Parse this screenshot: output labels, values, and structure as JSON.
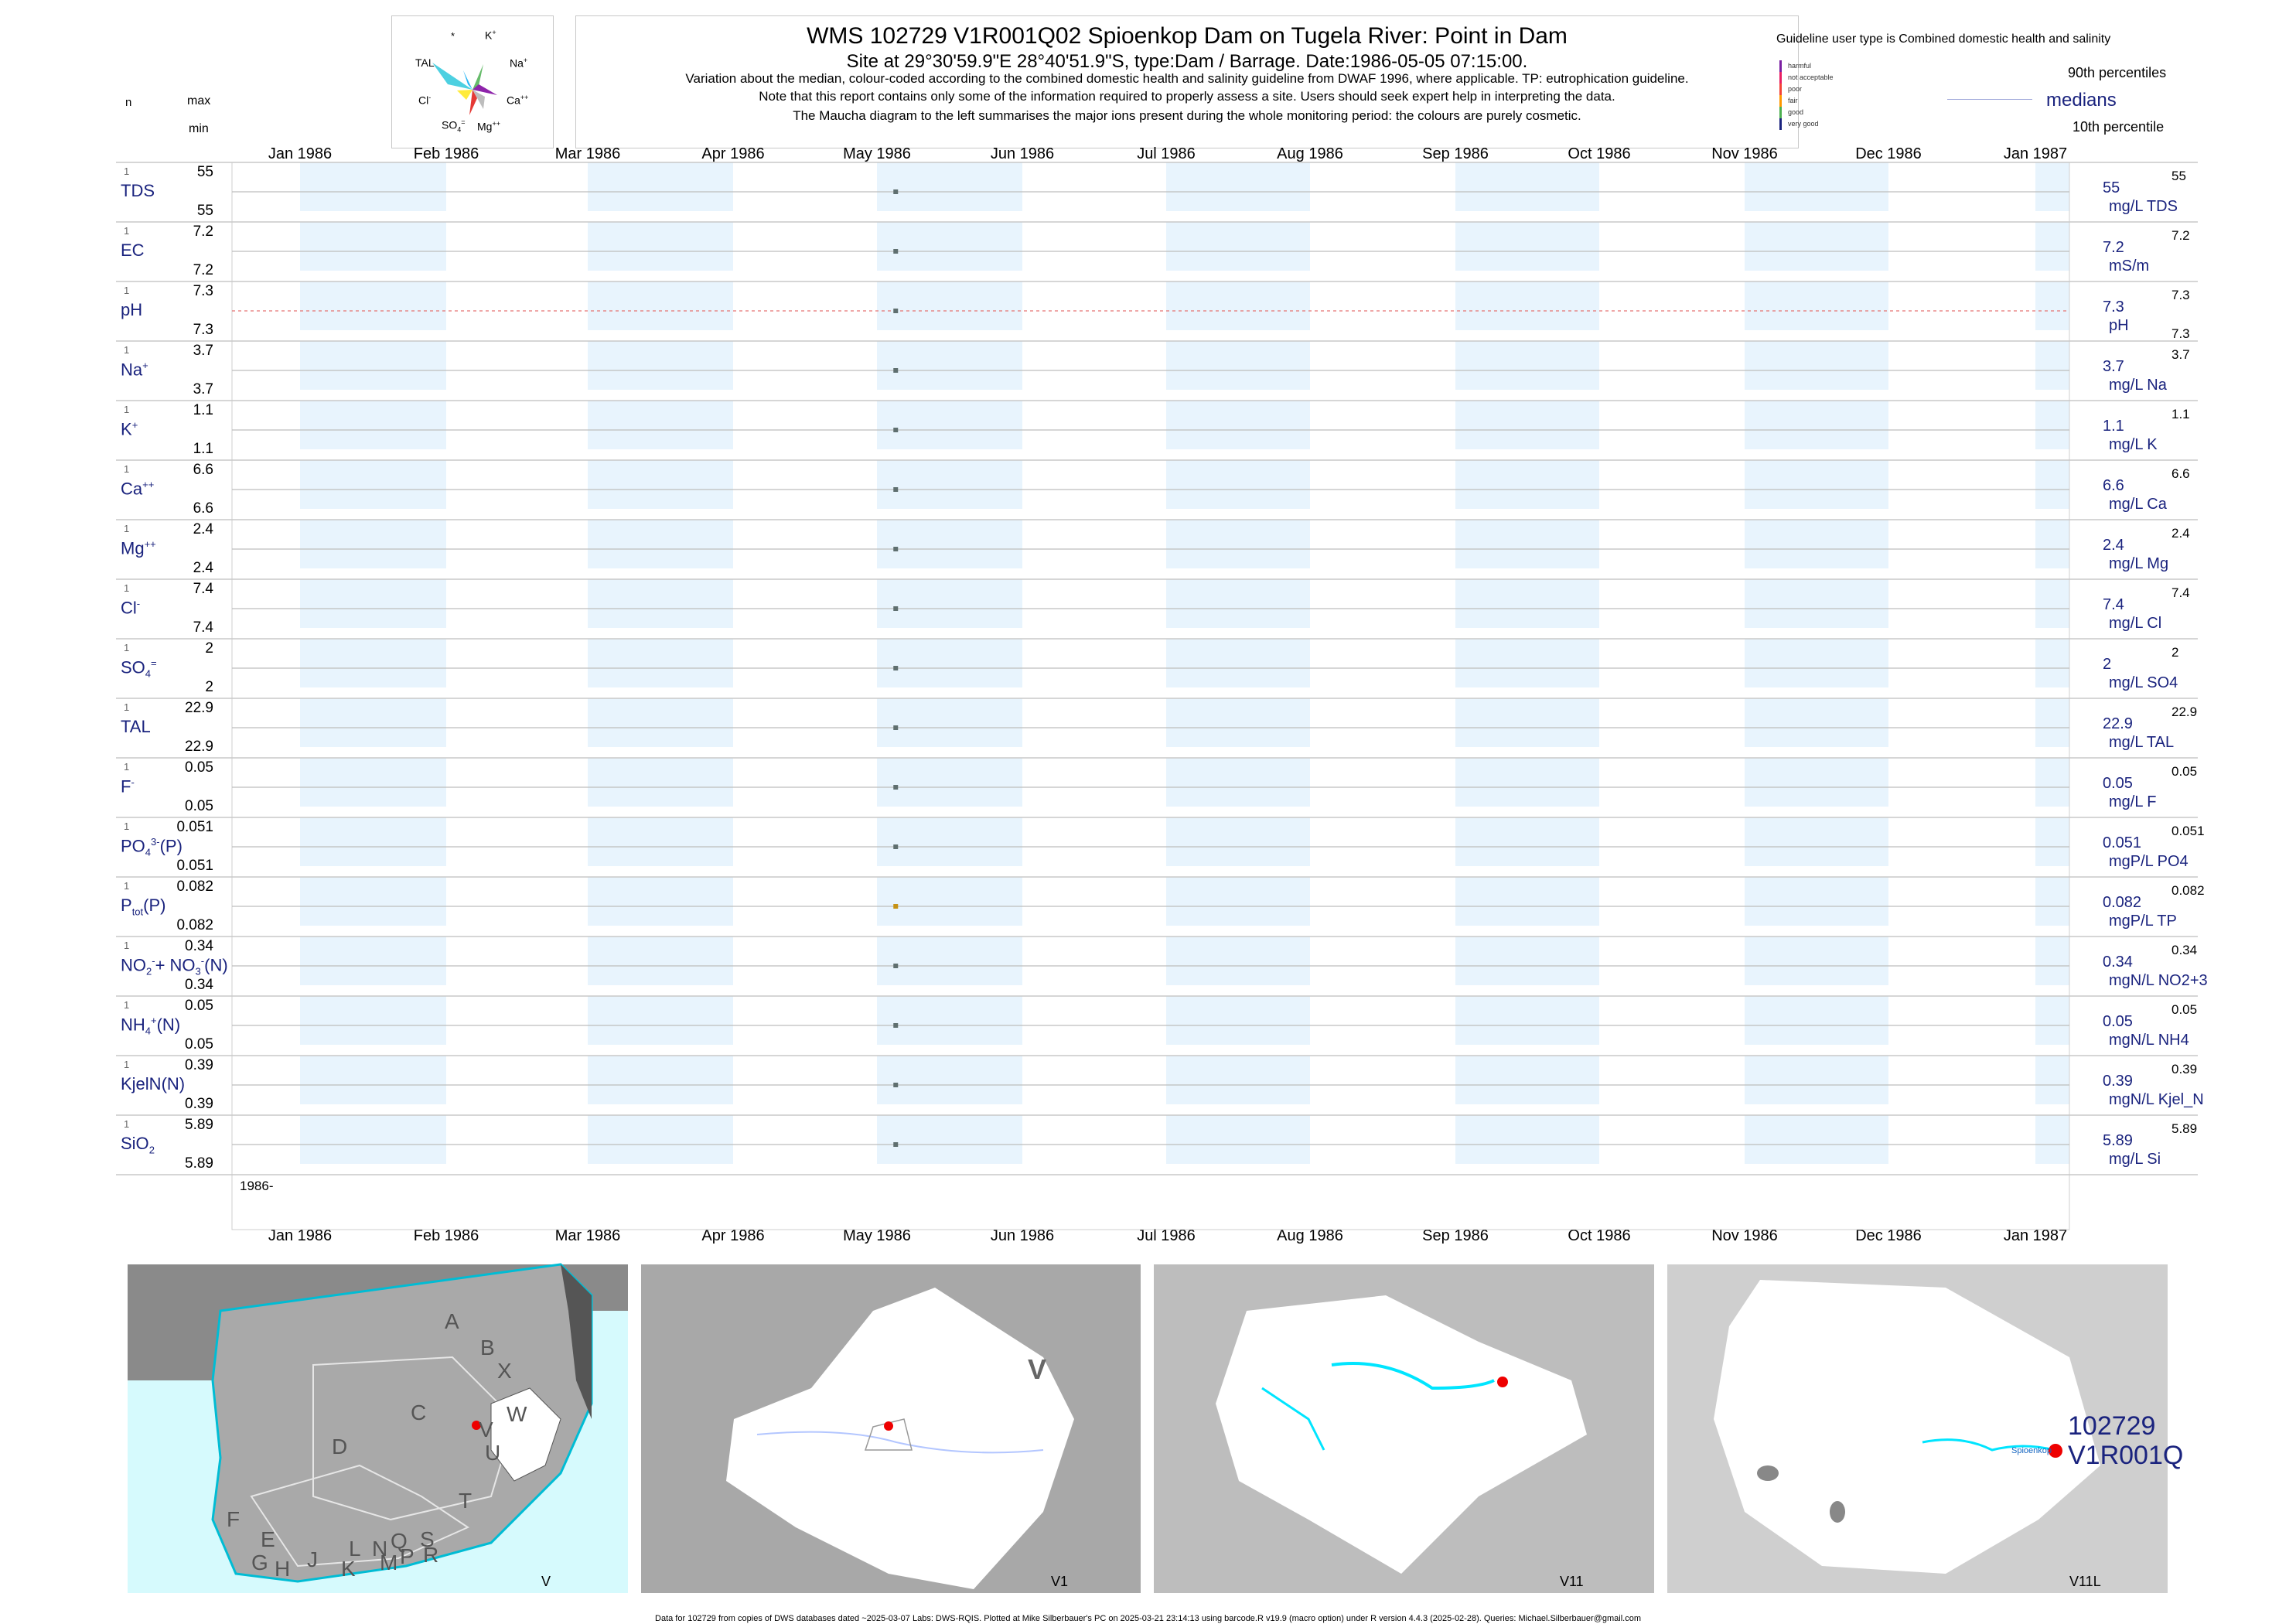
{
  "header": {
    "title": "WMS 102729 V1R001Q02 Spioenkop Dam on Tugela River: Point in Dam",
    "site_line": "Site at 29°30'59.9\"E 28°40'51.9\"S, type:Dam / Barrage. Date:1986-05-05 07:15:00.",
    "note1": "Variation about the median,  colour-coded according to the combined domestic health and salinity guideline from DWAF 1996, where applicable. TP: eutrophication guideline.",
    "note2": "Note that this report contains only some of the information required to properly assess a site. Users should seek expert help in interpreting the data.",
    "note3": "The Maucha diagram to the left summarises the major ions present during the whole monitoring period: the colours are purely cosmetic."
  },
  "left_header": {
    "n": "n",
    "max": "max",
    "min": "min"
  },
  "maucha": {
    "labels": {
      "star": "*",
      "k": "K+",
      "tal": "TAL",
      "na": "Na+",
      "cl": "Cl-",
      "ca": "Ca++",
      "so4": "SO4=",
      "mg": "Mg++"
    },
    "k_text": "K",
    "k_sup": "+",
    "na_text": "Na",
    "na_sup": "+",
    "cl_text": "Cl",
    "cl_sup": "-",
    "ca_text": "Ca",
    "ca_sup": "++",
    "so4_text": "SO",
    "so4_sub": "4",
    "so4_sup": "=",
    "mg_text": "Mg",
    "mg_sup": "++"
  },
  "guideline": {
    "title": "Guideline user type is Combined domestic health and salinity",
    "levels": [
      {
        "label": "harmful",
        "color": "#7b1fa2"
      },
      {
        "label": "not acceptable",
        "color": "#e91e63"
      },
      {
        "label": "poor",
        "color": "#f44336"
      },
      {
        "label": "fair",
        "color": "#ff9800"
      },
      {
        "label": "good",
        "color": "#4caf50"
      },
      {
        "label": "very good",
        "color": "#1a237e"
      }
    ],
    "p90": "90th percentiles",
    "medians": "medians",
    "p10": "10th percentile"
  },
  "axis": {
    "months": [
      "Jan 1986",
      "Feb 1986",
      "Mar 1986",
      "Apr 1986",
      "May 1986",
      "Jun 1986",
      "Jul 1986",
      "Aug 1986",
      "Sep 1986",
      "Oct 1986",
      "Nov 1986",
      "Dec 1986",
      "Jan 1987"
    ],
    "year_label": "1986-"
  },
  "rows": [
    {
      "name": "TDS",
      "n": "1",
      "max": "55",
      "min": "55",
      "median": "55",
      "unit": "mg/L TDS",
      "rmax": "55",
      "rmin": ""
    },
    {
      "name": "EC",
      "n": "1",
      "max": "7.2",
      "min": "7.2",
      "median": "7.2",
      "unit": "mS/m",
      "rmax": "7.2",
      "rmin": ""
    },
    {
      "name": "pH",
      "n": "1",
      "max": "7.3",
      "min": "7.3",
      "median": "7.3",
      "unit": "pH",
      "rmax": "7.3",
      "rmin": "7.3"
    },
    {
      "name": "Na",
      "sup": "+",
      "n": "1",
      "max": "3.7",
      "min": "3.7",
      "median": "3.7",
      "unit": "mg/L Na",
      "rmax": "3.7",
      "rmin": ""
    },
    {
      "name": "K",
      "sup": "+",
      "n": "1",
      "max": "1.1",
      "min": "1.1",
      "median": "1.1",
      "unit": "mg/L K",
      "rmax": "1.1",
      "rmin": ""
    },
    {
      "name": "Ca",
      "sup": "++",
      "n": "1",
      "max": "6.6",
      "min": "6.6",
      "median": "6.6",
      "unit": "mg/L Ca",
      "rmax": "6.6",
      "rmin": ""
    },
    {
      "name": "Mg",
      "sup": "++",
      "n": "1",
      "max": "2.4",
      "min": "2.4",
      "median": "2.4",
      "unit": "mg/L Mg",
      "rmax": "2.4",
      "rmin": ""
    },
    {
      "name": "Cl",
      "sup": "-",
      "n": "1",
      "max": "7.4",
      "min": "7.4",
      "median": "7.4",
      "unit": "mg/L Cl",
      "rmax": "7.4",
      "rmin": ""
    },
    {
      "name": "SO",
      "sub": "4",
      "sup": "=",
      "n": "1",
      "max": "2",
      "min": "2",
      "median": "2",
      "unit": "mg/L SO4",
      "rmax": "2",
      "rmin": ""
    },
    {
      "name": "TAL",
      "n": "1",
      "max": "22.9",
      "min": "22.9",
      "median": "22.9",
      "unit": "mg/L TAL",
      "rmax": "22.9",
      "rmin": ""
    },
    {
      "name": "F",
      "sup": "-",
      "n": "1",
      "max": "0.05",
      "min": "0.05",
      "median": "0.05",
      "unit": "mg/L F",
      "rmax": "0.05",
      "rmin": ""
    },
    {
      "name": "PO",
      "sub": "4",
      "sup": "3-",
      "post": "(P)",
      "n": "1",
      "max": "0.051",
      "min": "0.051",
      "median": "0.051",
      "unit": "mgP/L PO4",
      "rmax": "0.051",
      "rmin": ""
    },
    {
      "name": "P",
      "sub": "tot",
      "post": "(P)",
      "n": "1",
      "max": "0.082",
      "min": "0.082",
      "median": "0.082",
      "unit": "mgP/L TP",
      "rmax": "0.082",
      "rmin": ""
    },
    {
      "name": "NO",
      "sub": "2",
      "sup": "-",
      "post": "+ NO",
      "sub2": "3",
      "sup2": "-",
      "post2": "(N)",
      "n": "1",
      "max": "0.34",
      "min": "0.34",
      "median": "0.34",
      "unit": "mgN/L NO2+3",
      "rmax": "0.34",
      "rmin": ""
    },
    {
      "name": "NH",
      "sub": "4",
      "sup": "+",
      "post": "(N)",
      "n": "1",
      "max": "0.05",
      "min": "0.05",
      "median": "0.05",
      "unit": "mgN/L NH4",
      "rmax": "0.05",
      "rmin": ""
    },
    {
      "name": "KjelN(N)",
      "n": "1",
      "max": "0.39",
      "min": "0.39",
      "median": "0.39",
      "unit": "mgN/L Kjel_N",
      "rmax": "0.39",
      "rmin": ""
    },
    {
      "name": "SiO",
      "sub": "2",
      "n": "1",
      "max": "5.89",
      "min": "5.89",
      "median": "5.89",
      "unit": "mg/L Si",
      "rmax": "5.89",
      "rmin": ""
    }
  ],
  "chart_data": {
    "type": "scatter",
    "x_range": [
      "1986-01-01",
      "1987-01-01"
    ],
    "sample_date": "1986-05-05",
    "series": [
      {
        "name": "TDS",
        "x": [
          "1986-05-05"
        ],
        "values": [
          55
        ],
        "color": "#1a237e"
      },
      {
        "name": "EC",
        "x": [
          "1986-05-05"
        ],
        "values": [
          7.2
        ],
        "color": "#1a237e"
      },
      {
        "name": "pH",
        "x": [
          "1986-05-05"
        ],
        "values": [
          7.3
        ],
        "color": "#1a237e"
      },
      {
        "name": "Na+",
        "x": [
          "1986-05-05"
        ],
        "values": [
          3.7
        ],
        "color": "#1a237e"
      },
      {
        "name": "K+",
        "x": [
          "1986-05-05"
        ],
        "values": [
          1.1
        ],
        "color": "#1a237e"
      },
      {
        "name": "Ca++",
        "x": [
          "1986-05-05"
        ],
        "values": [
          6.6
        ],
        "color": "#1a237e"
      },
      {
        "name": "Mg++",
        "x": [
          "1986-05-05"
        ],
        "values": [
          2.4
        ],
        "color": "#1a237e"
      },
      {
        "name": "Cl-",
        "x": [
          "1986-05-05"
        ],
        "values": [
          7.4
        ],
        "color": "#1a237e"
      },
      {
        "name": "SO4=",
        "x": [
          "1986-05-05"
        ],
        "values": [
          2
        ],
        "color": "#1a237e"
      },
      {
        "name": "TAL",
        "x": [
          "1986-05-05"
        ],
        "values": [
          22.9
        ],
        "color": "#1a237e"
      },
      {
        "name": "F-",
        "x": [
          "1986-05-05"
        ],
        "values": [
          0.05
        ],
        "color": "#1a237e"
      },
      {
        "name": "PO43-(P)",
        "x": [
          "1986-05-05"
        ],
        "values": [
          0.051
        ],
        "color": "#1a237e"
      },
      {
        "name": "Ptot(P)",
        "x": [
          "1986-05-05"
        ],
        "values": [
          0.082
        ],
        "color": "#ff9800"
      },
      {
        "name": "NO2-+ NO3-(N)",
        "x": [
          "1986-05-05"
        ],
        "values": [
          0.34
        ],
        "color": "#1a237e"
      },
      {
        "name": "NH4+(N)",
        "x": [
          "1986-05-05"
        ],
        "values": [
          0.05
        ],
        "color": "#1a237e"
      },
      {
        "name": "KjelN(N)",
        "x": [
          "1986-05-05"
        ],
        "values": [
          0.39
        ],
        "color": "#1a237e"
      },
      {
        "name": "SiO2",
        "x": [
          "1986-05-05"
        ],
        "values": [
          5.89
        ],
        "color": "#1a237e"
      }
    ]
  },
  "maps": {
    "map1": {
      "label": "V",
      "regions": [
        "A",
        "B",
        "X",
        "C",
        "W",
        "D",
        "V",
        "U",
        "T",
        "F",
        "E",
        "L",
        "N",
        "Q",
        "S",
        "G",
        "H",
        "J",
        "K",
        "M",
        "P",
        "R"
      ]
    },
    "map2": {
      "label": "V1",
      "region": "V"
    },
    "map3": {
      "label": "V11"
    },
    "map4": {
      "label": "V11L",
      "site_id": "102729",
      "site_code": "V1R001Q",
      "site_name": "Spioenkop"
    }
  },
  "footer": "Data for 102729 from copies of DWS databases dated ~2025-03-07 Labs: DWS-RQIS. Plotted at Mike Silberbauer's PC on 2025-03-21 23:14:13 using barcode.R v19.9 (macro option) under R version 4.4.3 (2025-02-28). Queries: Michael.Silberbauer@gmail.com"
}
